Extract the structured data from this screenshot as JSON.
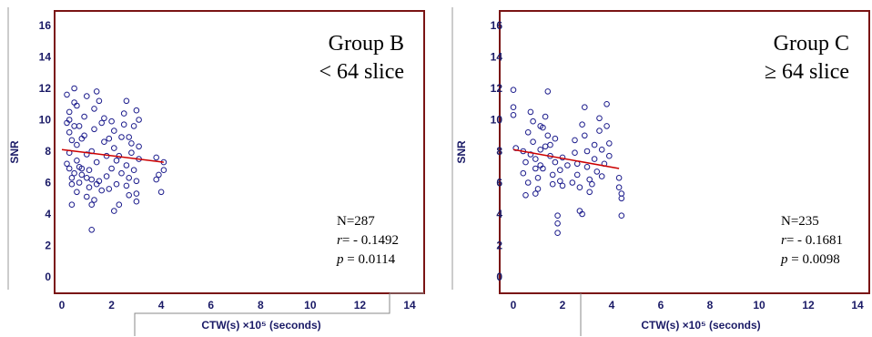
{
  "chart_data": [
    {
      "type": "scatter",
      "title": "",
      "annotation_lines": [
        "Group B",
        "< 64 slice"
      ],
      "xlabel": "CTW(s) ×10⁵ (seconds)",
      "ylabel": "SNR",
      "xlim": [
        0,
        14
      ],
      "ylim": [
        0,
        16
      ],
      "xticks": [
        "0",
        "2",
        "4",
        "6",
        "8",
        "10",
        "12",
        "14"
      ],
      "yticks": [
        "0",
        "2",
        "4",
        "6",
        "8",
        "10",
        "12",
        "14",
        "16"
      ],
      "grid": false,
      "stats": {
        "n": "N=287",
        "r_label": "r",
        "r_value": "= - 0.1492",
        "p_label": "p",
        "p_value": " = 0.0114"
      },
      "regression": {
        "x": [
          0.0,
          4.1
        ],
        "y": [
          8.1,
          7.3
        ],
        "color": "#cc0000"
      },
      "marker_color": "#1c1c8c",
      "points": [
        [
          0.2,
          11.6
        ],
        [
          0.3,
          10.5
        ],
        [
          0.2,
          9.8
        ],
        [
          0.3,
          9.2
        ],
        [
          0.4,
          8.7
        ],
        [
          0.3,
          7.9
        ],
        [
          0.2,
          7.2
        ],
        [
          0.4,
          6.3
        ],
        [
          0.3,
          10.0
        ],
        [
          0.5,
          11.1
        ],
        [
          0.5,
          9.6
        ],
        [
          0.6,
          8.4
        ],
        [
          0.5,
          12.0
        ],
        [
          0.6,
          10.9
        ],
        [
          0.4,
          5.9
        ],
        [
          0.5,
          6.6
        ],
        [
          0.7,
          6.0
        ],
        [
          0.6,
          5.4
        ],
        [
          0.4,
          4.6
        ],
        [
          0.7,
          7.0
        ],
        [
          0.8,
          6.5
        ],
        [
          0.8,
          8.8
        ],
        [
          0.9,
          10.2
        ],
        [
          0.9,
          9.0
        ],
        [
          1.0,
          11.5
        ],
        [
          1.0,
          7.8
        ],
        [
          1.1,
          6.8
        ],
        [
          1.0,
          5.1
        ],
        [
          1.1,
          5.7
        ],
        [
          1.2,
          6.2
        ],
        [
          1.2,
          8.0
        ],
        [
          1.3,
          9.4
        ],
        [
          1.3,
          10.7
        ],
        [
          1.4,
          11.8
        ],
        [
          1.5,
          11.2
        ],
        [
          1.4,
          7.3
        ],
        [
          1.5,
          6.1
        ],
        [
          1.6,
          5.5
        ],
        [
          1.2,
          4.6
        ],
        [
          1.3,
          4.9
        ],
        [
          1.2,
          3.0
        ],
        [
          1.6,
          9.8
        ],
        [
          1.7,
          8.6
        ],
        [
          1.7,
          10.1
        ],
        [
          1.8,
          7.7
        ],
        [
          1.8,
          6.4
        ],
        [
          1.9,
          5.6
        ],
        [
          2.0,
          6.9
        ],
        [
          2.1,
          8.2
        ],
        [
          2.1,
          9.3
        ],
        [
          2.2,
          7.4
        ],
        [
          2.2,
          5.9
        ],
        [
          2.1,
          4.2
        ],
        [
          2.3,
          4.6
        ],
        [
          2.4,
          6.6
        ],
        [
          2.4,
          8.9
        ],
        [
          2.5,
          10.4
        ],
        [
          2.5,
          9.7
        ],
        [
          2.6,
          11.2
        ],
        [
          2.6,
          7.1
        ],
        [
          2.7,
          6.3
        ],
        [
          2.7,
          5.2
        ],
        [
          2.8,
          7.9
        ],
        [
          2.8,
          8.5
        ],
        [
          2.9,
          9.6
        ],
        [
          2.9,
          6.8
        ],
        [
          3.0,
          6.1
        ],
        [
          3.0,
          10.6
        ],
        [
          3.1,
          10.0
        ],
        [
          3.1,
          8.3
        ],
        [
          3.1,
          7.5
        ],
        [
          3.0,
          5.3
        ],
        [
          3.0,
          4.8
        ],
        [
          3.8,
          7.6
        ],
        [
          3.9,
          6.5
        ],
        [
          4.0,
          5.4
        ],
        [
          4.1,
          6.8
        ],
        [
          4.1,
          7.3
        ],
        [
          0.8,
          6.9
        ],
        [
          1.9,
          8.8
        ],
        [
          2.3,
          7.7
        ],
        [
          1.0,
          6.3
        ],
        [
          0.7,
          9.6
        ],
        [
          0.6,
          7.4
        ],
        [
          2.7,
          8.9
        ],
        [
          1.4,
          5.9
        ],
        [
          2.0,
          9.9
        ],
        [
          2.6,
          5.8
        ],
        [
          0.3,
          6.9
        ],
        [
          3.8,
          6.2
        ]
      ]
    },
    {
      "type": "scatter",
      "title": "",
      "annotation_lines": [
        "Group C",
        "≥ 64 slice"
      ],
      "xlabel": "CTW(s) ×10⁵ (seconds)",
      "ylabel": "SNR",
      "xlim": [
        0,
        14
      ],
      "ylim": [
        0,
        16
      ],
      "xticks": [
        "0",
        "2",
        "4",
        "6",
        "8",
        "10",
        "12",
        "14"
      ],
      "yticks": [
        "0",
        "2",
        "4",
        "6",
        "8",
        "10",
        "12",
        "14",
        "16"
      ],
      "grid": false,
      "stats": {
        "n": "N=235",
        "r_label": "r",
        "r_value": "= - 0.1681",
        "p_label": "p",
        "p_value": " = 0.0098"
      },
      "regression": {
        "x": [
          0.0,
          4.3
        ],
        "y": [
          8.1,
          6.9
        ],
        "color": "#cc0000"
      },
      "marker_color": "#1c1c8c",
      "points": [
        [
          0.0,
          11.9
        ],
        [
          0.0,
          10.8
        ],
        [
          0.0,
          10.3
        ],
        [
          0.1,
          8.2
        ],
        [
          0.4,
          8.0
        ],
        [
          0.5,
          7.3
        ],
        [
          0.4,
          6.6
        ],
        [
          0.6,
          6.0
        ],
        [
          0.5,
          5.2
        ],
        [
          0.6,
          9.2
        ],
        [
          0.7,
          10.5
        ],
        [
          0.8,
          9.9
        ],
        [
          0.8,
          8.6
        ],
        [
          0.9,
          7.5
        ],
        [
          0.9,
          6.9
        ],
        [
          1.0,
          6.3
        ],
        [
          1.0,
          5.6
        ],
        [
          1.1,
          8.1
        ],
        [
          1.1,
          7.1
        ],
        [
          1.2,
          9.5
        ],
        [
          1.3,
          10.2
        ],
        [
          1.4,
          11.8
        ],
        [
          1.4,
          9.0
        ],
        [
          1.5,
          8.4
        ],
        [
          1.5,
          7.7
        ],
        [
          1.6,
          6.5
        ],
        [
          1.6,
          5.9
        ],
        [
          1.7,
          7.3
        ],
        [
          1.7,
          8.8
        ],
        [
          1.8,
          3.9
        ],
        [
          1.8,
          3.4
        ],
        [
          1.8,
          2.8
        ],
        [
          1.9,
          6.8
        ],
        [
          1.9,
          6.1
        ],
        [
          2.0,
          5.8
        ],
        [
          2.0,
          7.6
        ],
        [
          2.5,
          8.7
        ],
        [
          2.5,
          7.9
        ],
        [
          2.6,
          7.2
        ],
        [
          2.6,
          6.5
        ],
        [
          2.7,
          5.7
        ],
        [
          2.7,
          4.2
        ],
        [
          2.8,
          4.0
        ],
        [
          2.8,
          9.7
        ],
        [
          2.9,
          10.8
        ],
        [
          2.9,
          9.0
        ],
        [
          3.0,
          8.0
        ],
        [
          3.0,
          7.0
        ],
        [
          3.1,
          6.2
        ],
        [
          3.1,
          5.4
        ],
        [
          3.3,
          8.4
        ],
        [
          3.3,
          7.5
        ],
        [
          3.4,
          6.7
        ],
        [
          3.5,
          9.3
        ],
        [
          3.5,
          10.1
        ],
        [
          3.6,
          8.1
        ],
        [
          3.7,
          7.2
        ],
        [
          3.8,
          11.0
        ],
        [
          3.8,
          9.6
        ],
        [
          3.9,
          8.5
        ],
        [
          3.9,
          7.7
        ],
        [
          4.3,
          6.3
        ],
        [
          4.3,
          5.7
        ],
        [
          4.4,
          5.0
        ],
        [
          4.4,
          3.9
        ],
        [
          4.4,
          5.3
        ],
        [
          1.2,
          6.9
        ],
        [
          2.2,
          7.1
        ],
        [
          0.7,
          7.8
        ],
        [
          1.3,
          8.3
        ],
        [
          2.4,
          6.0
        ],
        [
          3.2,
          5.9
        ],
        [
          0.9,
          5.3
        ],
        [
          1.1,
          9.6
        ],
        [
          3.6,
          6.4
        ]
      ]
    }
  ]
}
